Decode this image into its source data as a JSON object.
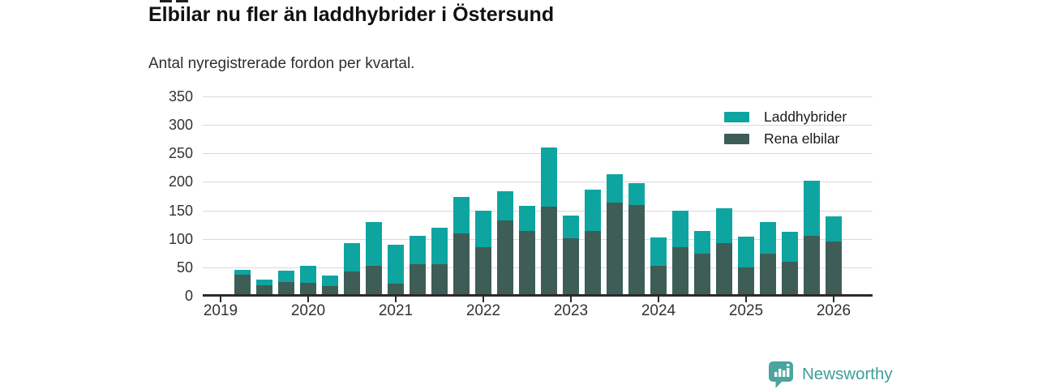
{
  "title": "Elbilar nu fler än laddhybrider i Östersund",
  "subtitle": "Antal nyregistrerade fordon per kvartal.",
  "colors": {
    "laddhybrider": "#0ea5a0",
    "rena_elbilar": "#3e5d56",
    "grid": "#d9d9d9",
    "axis": "#2b2b2b",
    "text": "#333333",
    "logo_badge": "#4aa59e",
    "logo_text": "#3f9f99"
  },
  "legend": [
    {
      "label": "Laddhybrider",
      "color_key": "laddhybrider"
    },
    {
      "label": "Rena elbilar",
      "color_key": "rena_elbilar"
    }
  ],
  "footer": {
    "brand": "Newsworthy"
  },
  "chart_data": {
    "type": "bar",
    "stacked": true,
    "title": "Elbilar nu fler än laddhybrider i Östersund",
    "subtitle": "Antal nyregistrerade fordon per kvartal.",
    "xlabel": "",
    "ylabel": "",
    "ylim": [
      0,
      350
    ],
    "y_ticks": [
      0,
      50,
      100,
      150,
      200,
      250,
      300,
      350
    ],
    "x_tick_labels": [
      "2019",
      "2020",
      "2021",
      "2022",
      "2023",
      "2024",
      "2025",
      "2026"
    ],
    "grid": true,
    "legend_position": "top-right",
    "categories": [
      "2019 Q2",
      "2019 Q3",
      "2019 Q4",
      "2020 Q1",
      "2020 Q2",
      "2020 Q3",
      "2020 Q4",
      "2021 Q1",
      "2021 Q2",
      "2021 Q3",
      "2021 Q4",
      "2022 Q1",
      "2022 Q2",
      "2022 Q3",
      "2022 Q4",
      "2023 Q1",
      "2023 Q2",
      "2023 Q3",
      "2023 Q4",
      "2024 Q1",
      "2024 Q2",
      "2024 Q3",
      "2024 Q4",
      "2025 Q1",
      "2025 Q2",
      "2025 Q3",
      "2025 Q4",
      "2026 Q1"
    ],
    "stack_order_bottom_to_top": [
      "Rena elbilar",
      "Laddhybrider"
    ],
    "series": [
      {
        "name": "Laddhybrider",
        "values": [
          9,
          9,
          20,
          29,
          18,
          49,
          76,
          69,
          50,
          63,
          64,
          64,
          50,
          44,
          105,
          40,
          72,
          49,
          39,
          50,
          63,
          40,
          62,
          54,
          56,
          52,
          97,
          45
        ]
      },
      {
        "name": "Rena elbilar",
        "values": [
          37,
          19,
          24,
          23,
          17,
          43,
          53,
          21,
          55,
          56,
          109,
          86,
          133,
          114,
          156,
          101,
          114,
          164,
          159,
          53,
          86,
          74,
          92,
          50,
          74,
          60,
          105,
          95
        ]
      }
    ]
  }
}
